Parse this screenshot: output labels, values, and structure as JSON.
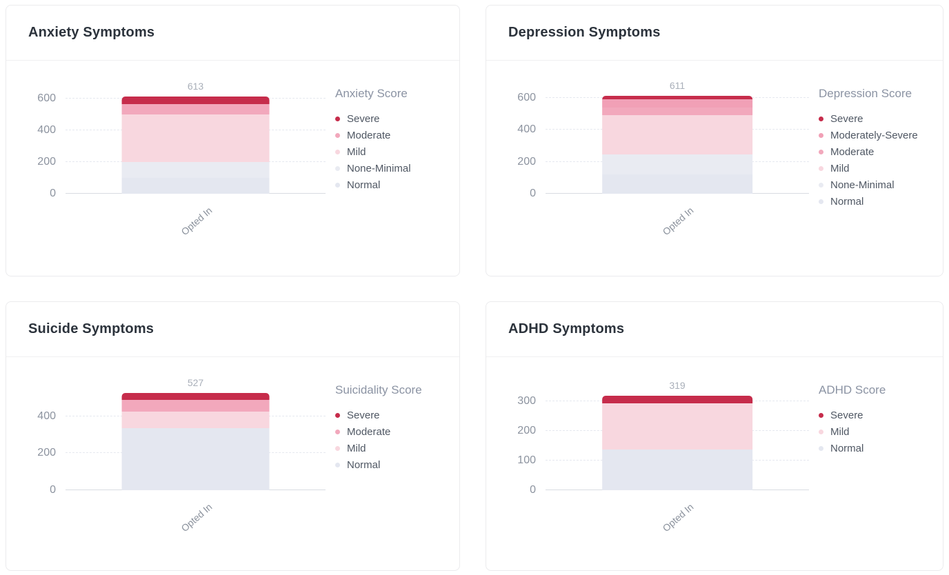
{
  "page": {
    "background": "#ffffff"
  },
  "colors": {
    "severe": "#c62c4b",
    "moderately_severe": "#f1a0b6",
    "moderate": "#f2a8bc",
    "mild": "#f8d7df",
    "none_minimal": "#e9ebf2",
    "normal": "#e4e7f0",
    "card_border": "#ebebed",
    "gridline": "#e5e8ef",
    "axis_line": "#d8dce2",
    "title_text": "#2c333c",
    "tick_text": "#8c939f",
    "legend_title_text": "#8b93a3",
    "legend_item_text": "#4f5763",
    "total_label_text": "#a9afb9"
  },
  "chart_data": [
    {
      "type": "bar",
      "stacked": true,
      "title": "Anxiety Symptoms",
      "legend_title": "Anxiety Score",
      "legend_position": "right",
      "grid": true,
      "categories": [
        "Opted In"
      ],
      "total": 613,
      "y_ticks": [
        0,
        200,
        400,
        600
      ],
      "ylim": [
        0,
        780
      ],
      "series": [
        {
          "name": "Severe",
          "value": 48,
          "color": "#c62c4b"
        },
        {
          "name": "Moderate",
          "value": 67,
          "color": "#f2a8bc"
        },
        {
          "name": "Mild",
          "value": 298,
          "color": "#f8d7df"
        },
        {
          "name": "None-Minimal",
          "value": 100,
          "color": "#e9ebf2"
        },
        {
          "name": "Normal",
          "value": 100,
          "color": "#e4e7f0"
        }
      ]
    },
    {
      "type": "bar",
      "stacked": true,
      "title": "Depression Symptoms",
      "legend_title": "Depression Score",
      "legend_position": "right",
      "grid": true,
      "categories": [
        "Opted In"
      ],
      "total": 611,
      "y_ticks": [
        0,
        200,
        400,
        600
      ],
      "ylim": [
        0,
        775
      ],
      "series": [
        {
          "name": "Severe",
          "value": 23,
          "color": "#c62c4b"
        },
        {
          "name": "Moderately-Severe",
          "value": 49,
          "color": "#f1a0b6"
        },
        {
          "name": "Moderate",
          "value": 49,
          "color": "#f2a8bc"
        },
        {
          "name": "Mild",
          "value": 246,
          "color": "#f8d7df"
        },
        {
          "name": "None-Minimal",
          "value": 122,
          "color": "#e9ebf2"
        },
        {
          "name": "Normal",
          "value": 122,
          "color": "#e4e7f0"
        }
      ]
    },
    {
      "type": "bar",
      "stacked": true,
      "title": "Suicide Symptoms",
      "legend_title": "Suicidality Score",
      "legend_position": "right",
      "grid": true,
      "categories": [
        "Opted In"
      ],
      "total": 527,
      "y_ticks": [
        0,
        200,
        400
      ],
      "ylim": [
        0,
        672
      ],
      "series": [
        {
          "name": "Severe",
          "value": 37,
          "color": "#c62c4b"
        },
        {
          "name": "Moderate",
          "value": 66,
          "color": "#f2a8bc"
        },
        {
          "name": "Mild",
          "value": 89,
          "color": "#f8d7df"
        },
        {
          "name": "Normal",
          "value": 335,
          "color": "#e4e7f0"
        }
      ]
    },
    {
      "type": "bar",
      "stacked": true,
      "title": "ADHD Symptoms",
      "legend_title": "ADHD Score",
      "legend_position": "right",
      "grid": true,
      "categories": [
        "Opted In"
      ],
      "total": 319,
      "y_ticks": [
        0,
        100,
        200,
        300
      ],
      "ylim": [
        0,
        420
      ],
      "series": [
        {
          "name": "Severe",
          "value": 25,
          "color": "#c62c4b"
        },
        {
          "name": "Mild",
          "value": 157,
          "color": "#f8d7df"
        },
        {
          "name": "Normal",
          "value": 137,
          "color": "#e4e7f0"
        }
      ]
    }
  ]
}
